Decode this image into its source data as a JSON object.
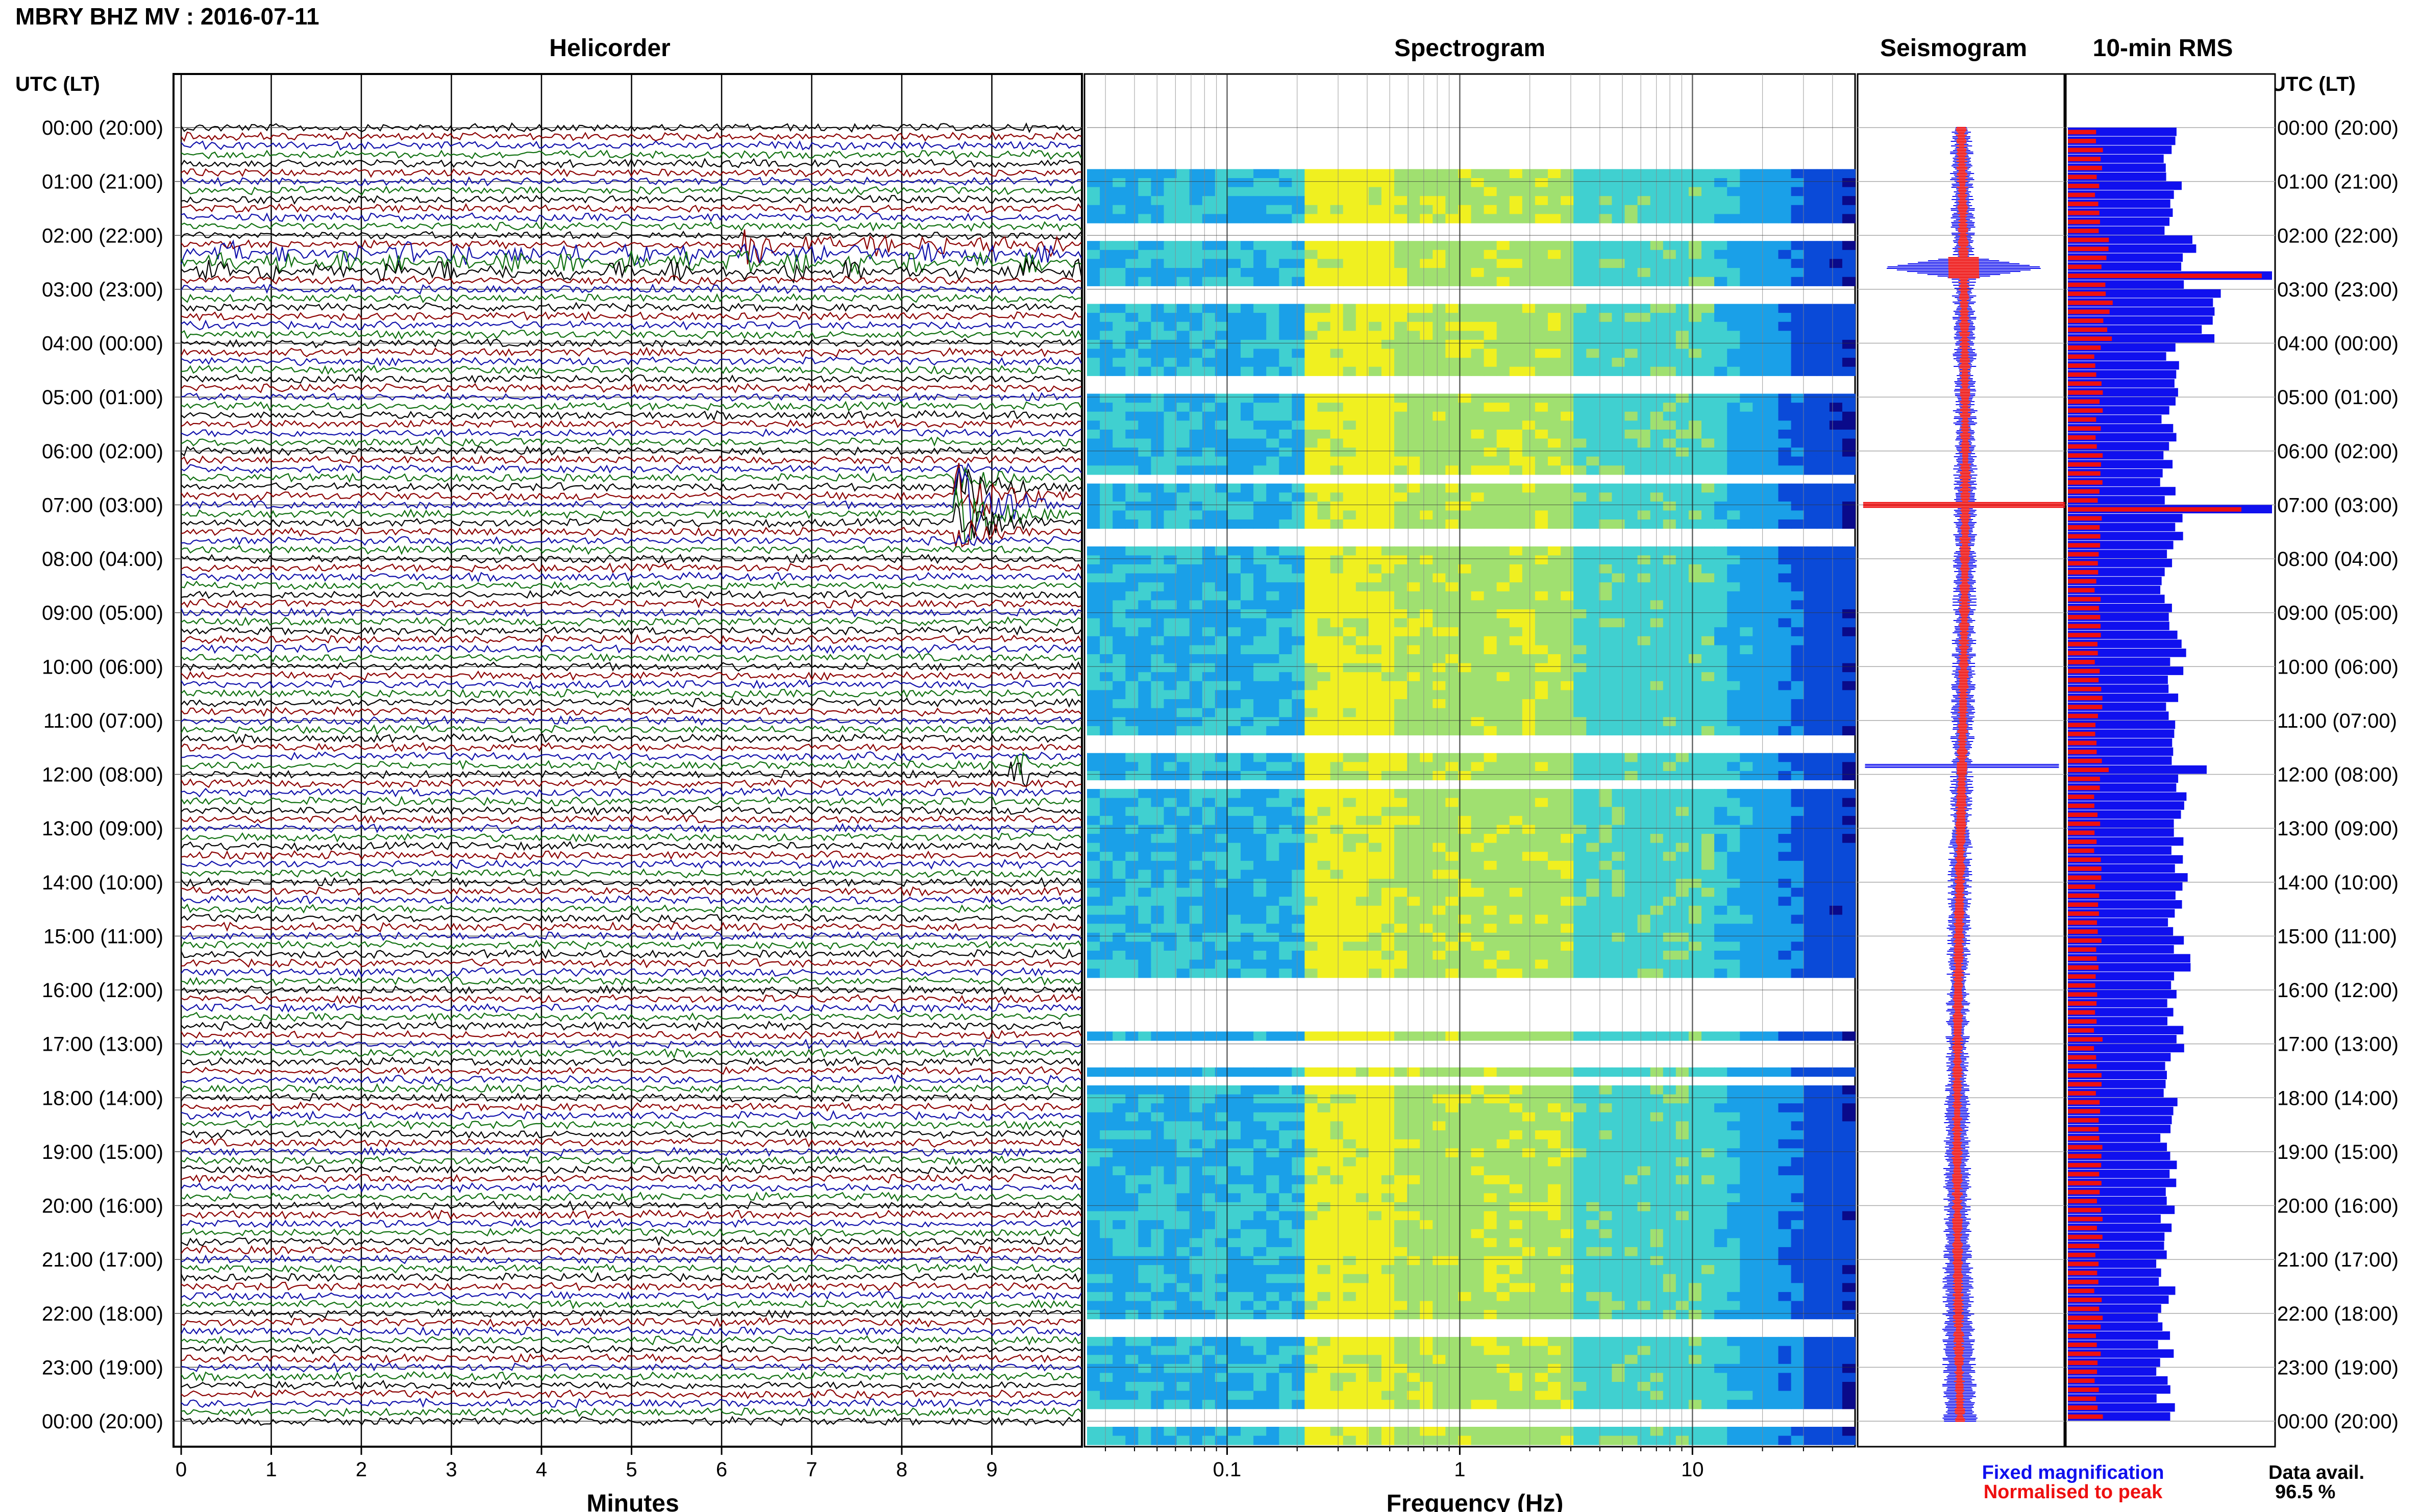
{
  "header": {
    "station_title": "MBRY BHZ MV : 2016-07-11",
    "time_axis_label": "UTC (LT)"
  },
  "panels": {
    "helicorder": "Helicorder",
    "spectrogram": "Spectrogram",
    "seismogram": "Seismogram",
    "rms": "10-min RMS"
  },
  "time_labels": [
    "00:00 (20:00)",
    "01:00 (21:00)",
    "02:00 (22:00)",
    "03:00 (23:00)",
    "04:00 (00:00)",
    "05:00 (01:00)",
    "06:00 (02:00)",
    "07:00 (03:00)",
    "08:00 (04:00)",
    "09:00 (05:00)",
    "10:00 (06:00)",
    "11:00 (07:00)",
    "12:00 (08:00)",
    "13:00 (09:00)",
    "14:00 (10:00)",
    "15:00 (11:00)",
    "16:00 (12:00)",
    "17:00 (13:00)",
    "18:00 (14:00)",
    "19:00 (15:00)",
    "20:00 (16:00)",
    "21:00 (17:00)",
    "22:00 (18:00)",
    "23:00 (19:00)",
    "00:00 (20:00)"
  ],
  "legend": {
    "fixed": "Fixed magnification",
    "normalised": "Normalised to peak",
    "fixed_color": "#1010ee",
    "normalised_color": "#ee1010"
  },
  "data_availability": {
    "label": "Data avail.",
    "value": "96.5 %"
  },
  "colors": {
    "helicorder_traces": [
      "#000000",
      "#8b0000",
      "#1010aa",
      "#107010"
    ],
    "rms_fixed": "#1010ee",
    "rms_normalised": "#ee1010",
    "spectrogram_colormap": [
      "#0a0a8a",
      "#0a4ad8",
      "#1aa0e8",
      "#40d0d0",
      "#a0e070",
      "#f0f020",
      "#f08a10",
      "#e01010"
    ]
  },
  "chart_data": [
    {
      "type": "line",
      "title": "Helicorder",
      "xlabel": "Minutes",
      "x_ticks": [
        "0",
        "1",
        "2",
        "3",
        "4",
        "5",
        "6",
        "7",
        "8",
        "9"
      ],
      "xlim": [
        0,
        10
      ],
      "rows": 144,
      "row_minutes": 10,
      "events": [
        {
          "utc": "02:10",
          "start_min": 6.2,
          "description": "large oscillatory signal"
        },
        {
          "utc": "06:50",
          "start_min": 8.6,
          "description": "large event"
        },
        {
          "utc": "11:50",
          "start_min": 9.2,
          "description": "small event"
        }
      ]
    },
    {
      "type": "heatmap",
      "title": "Spectrogram",
      "xlabel": "Frequency (Hz)",
      "x_scale": "log",
      "xlim": [
        0.025,
        50
      ],
      "x_ticks": [
        "0.1",
        "1",
        "10"
      ],
      "ylim_utc": [
        "00:00",
        "24:00"
      ]
    },
    {
      "type": "line",
      "title": "Seismogram",
      "series": [
        {
          "name": "Fixed magnification",
          "color": "#1010ee"
        },
        {
          "name": "Normalised to peak",
          "color": "#ee1010"
        }
      ],
      "peaks_utc": [
        "02:40",
        "07:00",
        "11:50"
      ]
    },
    {
      "type": "bar",
      "title": "10-min RMS",
      "orientation": "horizontal",
      "samples_per_hour": 6,
      "series": [
        {
          "name": "Fixed magnification",
          "color": "#1010ee",
          "hourly_level": [
            0.5,
            0.52,
            0.58,
            0.7,
            0.5,
            0.5,
            0.5,
            0.52,
            0.5,
            0.54,
            0.52,
            0.54,
            0.55,
            0.55,
            0.54,
            0.55,
            0.52,
            0.52,
            0.5,
            0.5,
            0.48,
            0.48,
            0.48,
            0.48
          ],
          "peaks": [
            {
              "utc": "02:40",
              "value": 1.0
            },
            {
              "utc": "07:00",
              "value": 1.0
            },
            {
              "utc": "11:50",
              "value": 0.68
            }
          ]
        },
        {
          "name": "Normalised to peak",
          "color": "#ee1010",
          "hourly_level": [
            0.15,
            0.15,
            0.18,
            0.2,
            0.15,
            0.15,
            0.15,
            0.15,
            0.15,
            0.15,
            0.15,
            0.15,
            0.15,
            0.15,
            0.15,
            0.15,
            0.15,
            0.15,
            0.15,
            0.15,
            0.15,
            0.15,
            0.15,
            0.15
          ],
          "peaks": [
            {
              "utc": "02:40",
              "value": 0.95
            },
            {
              "utc": "07:00",
              "value": 0.85
            },
            {
              "utc": "11:50",
              "value": 0.2
            }
          ]
        }
      ]
    }
  ]
}
